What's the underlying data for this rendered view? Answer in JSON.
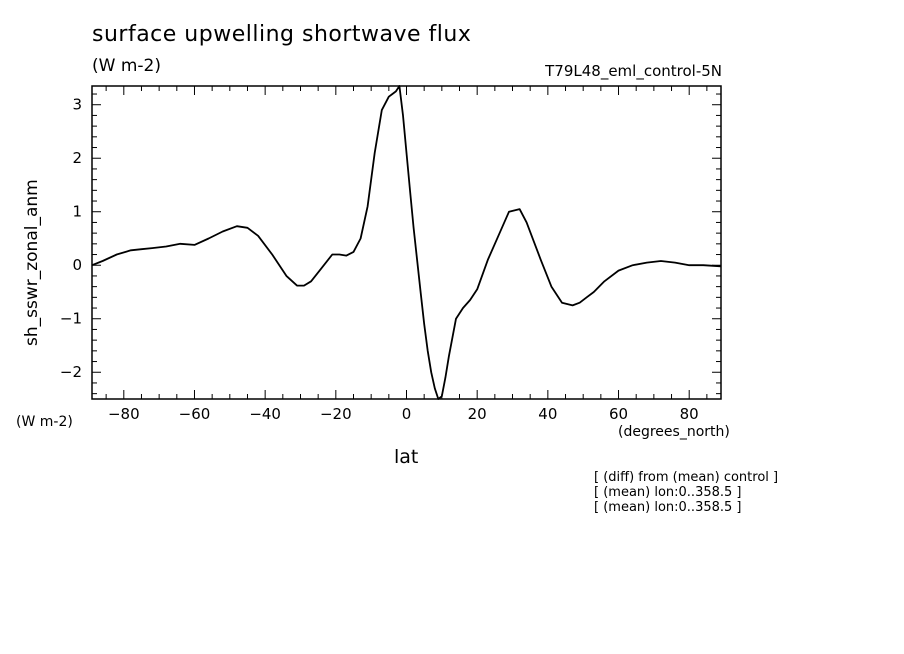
{
  "header": {
    "title": "surface upwelling shortwave flux",
    "units": "(W m-2)",
    "run_name": "T79L48_eml_control-5N"
  },
  "axes": {
    "y_label": "sh_sswr_zonal_anm",
    "y_units": "(W m-2)",
    "x_label": "lat",
    "x_units": "(degrees_north)"
  },
  "notes": [
    "[ (diff) from (mean) control ]",
    "[ (mean) lon:0..358.5 ]",
    "[ (mean) lon:0..358.5 ]"
  ],
  "chart_data": {
    "type": "line",
    "xlim": [
      -89,
      89
    ],
    "ylim": [
      -2.5,
      3.35
    ],
    "x_ticks": [
      -80,
      -60,
      -40,
      -20,
      0,
      20,
      40,
      60,
      80
    ],
    "x_tick_labels": [
      "−80",
      "−60",
      "−40",
      "−20",
      "0",
      "20",
      "40",
      "60",
      "80"
    ],
    "y_ticks": [
      -2,
      -1,
      0,
      1,
      2,
      3
    ],
    "y_tick_labels": [
      "−2",
      "−1",
      "0",
      "1",
      "2",
      "3"
    ],
    "grid": false,
    "color": "#000000",
    "x": [
      -89,
      -86,
      -82,
      -78,
      -75,
      -72,
      -68,
      -64,
      -60,
      -56,
      -52,
      -48,
      -45,
      -42,
      -38,
      -34,
      -31,
      -29,
      -27,
      -24,
      -21,
      -19,
      -17,
      -15,
      -13,
      -11,
      -9,
      -7,
      -5,
      -4,
      -3,
      -2,
      -1,
      0,
      1,
      2,
      3,
      4,
      5,
      6,
      7,
      8,
      9,
      10,
      11,
      12,
      14,
      16,
      18,
      20,
      23,
      26,
      29,
      32,
      34,
      36,
      38,
      41,
      44,
      47,
      49,
      51,
      53,
      56,
      60,
      64,
      68,
      72,
      76,
      80,
      84,
      89
    ],
    "y": [
      0.0,
      0.08,
      0.2,
      0.28,
      0.3,
      0.32,
      0.35,
      0.4,
      0.38,
      0.5,
      0.63,
      0.73,
      0.7,
      0.55,
      0.2,
      -0.2,
      -0.38,
      -0.38,
      -0.3,
      -0.05,
      0.2,
      0.2,
      0.18,
      0.25,
      0.5,
      1.1,
      2.1,
      2.9,
      3.15,
      3.2,
      3.25,
      3.35,
      2.8,
      2.1,
      1.4,
      0.7,
      0.1,
      -0.5,
      -1.1,
      -1.6,
      -2.0,
      -2.3,
      -2.5,
      -2.45,
      -2.1,
      -1.7,
      -1.0,
      -0.8,
      -0.65,
      -0.45,
      0.1,
      0.55,
      1.0,
      1.05,
      0.8,
      0.45,
      0.1,
      -0.4,
      -0.7,
      -0.75,
      -0.7,
      -0.6,
      -0.5,
      -0.3,
      -0.1,
      0.0,
      0.05,
      0.08,
      0.05,
      0.0,
      0.0,
      -0.02
    ]
  }
}
